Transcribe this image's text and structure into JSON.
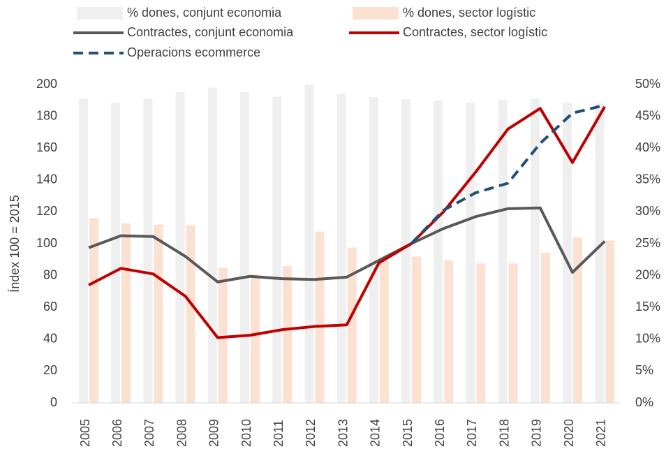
{
  "chart_data": {
    "type": "bar_line",
    "y_label": "Índex 100 = 2015",
    "categories": [
      "2005",
      "2006",
      "2007",
      "2008",
      "2009",
      "2010",
      "2011",
      "2012",
      "2013",
      "2014",
      "2015",
      "2016",
      "2017",
      "2018",
      "2019",
      "2020",
      "2021"
    ],
    "series": [
      {
        "name": "% dones, conjunt economia",
        "kind": "bar",
        "axis": "y2",
        "color": "#efefef",
        "values": [
          47.8,
          47.1,
          47.8,
          48.8,
          49.5,
          48.8,
          48.1,
          50.0,
          48.5,
          48.0,
          47.7,
          47.5,
          47.1,
          47.6,
          47.8,
          47.1,
          47.0
        ]
      },
      {
        "name": "% dones, sector logístic",
        "kind": "bar",
        "axis": "y2",
        "color": "#fbe1d1",
        "values": [
          29.0,
          28.2,
          28.0,
          27.9,
          21.2,
          20.2,
          21.5,
          26.9,
          24.4,
          22.3,
          23.0,
          22.4,
          21.9,
          21.9,
          23.6,
          26.0,
          25.5
        ]
      },
      {
        "name": "Contractes, conjunt economia",
        "kind": "line",
        "color": "#595959",
        "values": [
          97.5,
          105,
          104.5,
          92,
          76,
          79.5,
          78,
          77.5,
          79,
          89.5,
          100,
          109.5,
          117,
          122,
          122.5,
          82,
          101.5
        ]
      },
      {
        "name": "Contractes, sector logístic",
        "kind": "line",
        "color": "#c00000",
        "values": [
          74,
          84.5,
          81,
          67,
          41,
          42.5,
          46,
          48,
          49,
          88,
          100,
          120,
          145,
          172,
          185,
          151,
          186
        ]
      },
      {
        "name": "Operacions ecommerce",
        "kind": "line",
        "dashed": true,
        "color": "#1f4e79",
        "values": [
          null,
          null,
          null,
          null,
          null,
          null,
          null,
          null,
          null,
          null,
          100,
          121,
          132,
          138,
          163,
          182,
          187
        ]
      }
    ],
    "ylim": [
      0,
      200
    ],
    "yticks": [
      0,
      20,
      40,
      60,
      80,
      100,
      120,
      140,
      160,
      180,
      200
    ],
    "y2lim": [
      0,
      50
    ],
    "y2ticks": [
      {
        "value": 0,
        "label": "0%"
      },
      {
        "value": 5,
        "label": "5%"
      },
      {
        "value": 10,
        "label": "10%"
      },
      {
        "value": 15,
        "label": "15%"
      },
      {
        "value": 20,
        "label": "20%"
      },
      {
        "value": 25,
        "label": "25%"
      },
      {
        "value": 30,
        "label": "30%"
      },
      {
        "value": 35,
        "label": "35%"
      },
      {
        "value": 40,
        "label": "40%"
      },
      {
        "value": 45,
        "label": "45%"
      },
      {
        "value": 50,
        "label": "50%"
      }
    ]
  }
}
